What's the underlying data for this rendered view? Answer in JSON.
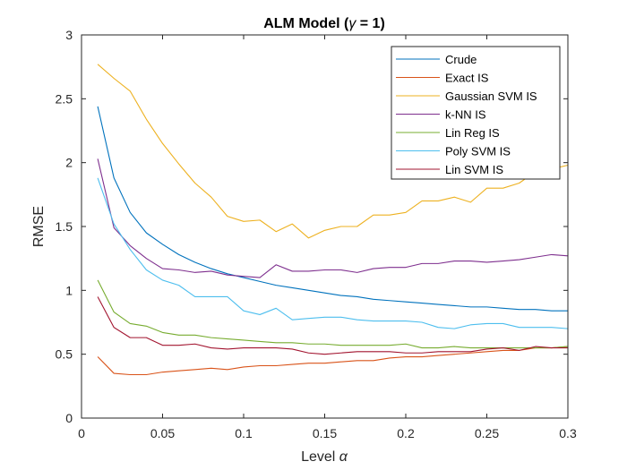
{
  "chart_data": {
    "type": "line",
    "title": "ALM Model (γ = 1)",
    "title_parts": {
      "prefix": "ALM Model (",
      "symbol": "γ",
      "suffix": " = 1)"
    },
    "xlabel": "Level α",
    "xlabel_parts": {
      "prefix": "Level ",
      "symbol": "α"
    },
    "ylabel": "RMSE",
    "xlim": [
      0,
      0.3
    ],
    "ylim": [
      0,
      3
    ],
    "xticks": [
      0,
      0.05,
      0.1,
      0.15,
      0.2,
      0.25,
      0.3
    ],
    "xtick_labels": [
      "0",
      "0.05",
      "0.1",
      "0.15",
      "0.2",
      "0.25",
      "0.3"
    ],
    "yticks": [
      0,
      0.5,
      1,
      1.5,
      2,
      2.5,
      3
    ],
    "ytick_labels": [
      "0",
      "0.5",
      "1",
      "1.5",
      "2",
      "2.5",
      "3"
    ],
    "grid": false,
    "legend_position": "top-right",
    "x": [
      0.01,
      0.02,
      0.03,
      0.04,
      0.05,
      0.06,
      0.07,
      0.08,
      0.09,
      0.1,
      0.11,
      0.12,
      0.13,
      0.14,
      0.15,
      0.16,
      0.17,
      0.18,
      0.19,
      0.2,
      0.21,
      0.22,
      0.23,
      0.24,
      0.25,
      0.26,
      0.27,
      0.28,
      0.29,
      0.3
    ],
    "series": [
      {
        "name": "Crude",
        "color": "#0072BD",
        "values": [
          2.44,
          1.88,
          1.61,
          1.45,
          1.36,
          1.28,
          1.22,
          1.17,
          1.13,
          1.1,
          1.07,
          1.04,
          1.02,
          1.0,
          0.98,
          0.96,
          0.95,
          0.93,
          0.92,
          0.91,
          0.9,
          0.89,
          0.88,
          0.87,
          0.87,
          0.86,
          0.85,
          0.85,
          0.84,
          0.84
        ]
      },
      {
        "name": "Exact IS",
        "color": "#D95319",
        "values": [
          0.48,
          0.35,
          0.34,
          0.34,
          0.36,
          0.37,
          0.38,
          0.39,
          0.38,
          0.4,
          0.41,
          0.41,
          0.42,
          0.43,
          0.43,
          0.44,
          0.45,
          0.45,
          0.47,
          0.48,
          0.48,
          0.49,
          0.5,
          0.51,
          0.52,
          0.53,
          0.53,
          0.55,
          0.55,
          0.56
        ]
      },
      {
        "name": "Gaussian SVM IS",
        "color": "#EDB120",
        "values": [
          2.77,
          2.66,
          2.56,
          2.34,
          2.15,
          1.99,
          1.84,
          1.73,
          1.58,
          1.54,
          1.55,
          1.46,
          1.52,
          1.41,
          1.47,
          1.5,
          1.5,
          1.59,
          1.59,
          1.61,
          1.7,
          1.7,
          1.73,
          1.69,
          1.8,
          1.8,
          1.84,
          1.93,
          1.95,
          1.98
        ]
      },
      {
        "name": "k-NN IS",
        "color": "#7E2F8E",
        "values": [
          2.03,
          1.49,
          1.35,
          1.25,
          1.17,
          1.16,
          1.14,
          1.15,
          1.12,
          1.11,
          1.1,
          1.2,
          1.15,
          1.15,
          1.16,
          1.16,
          1.14,
          1.17,
          1.18,
          1.18,
          1.21,
          1.21,
          1.23,
          1.23,
          1.22,
          1.23,
          1.24,
          1.26,
          1.28,
          1.27
        ]
      },
      {
        "name": "Lin Reg IS",
        "color": "#77AC30",
        "values": [
          1.08,
          0.83,
          0.74,
          0.72,
          0.67,
          0.65,
          0.65,
          0.63,
          0.62,
          0.61,
          0.6,
          0.59,
          0.59,
          0.58,
          0.58,
          0.57,
          0.57,
          0.57,
          0.57,
          0.58,
          0.55,
          0.55,
          0.56,
          0.55,
          0.55,
          0.55,
          0.55,
          0.55,
          0.55,
          0.56
        ]
      },
      {
        "name": "Poly SVM IS",
        "color": "#4DBEEE",
        "values": [
          1.88,
          1.52,
          1.32,
          1.16,
          1.08,
          1.04,
          0.95,
          0.95,
          0.95,
          0.84,
          0.81,
          0.86,
          0.77,
          0.78,
          0.79,
          0.79,
          0.77,
          0.76,
          0.76,
          0.76,
          0.75,
          0.71,
          0.7,
          0.73,
          0.74,
          0.74,
          0.71,
          0.71,
          0.71,
          0.7
        ]
      },
      {
        "name": "Lin SVM IS",
        "color": "#A2142F",
        "values": [
          0.95,
          0.71,
          0.63,
          0.63,
          0.57,
          0.57,
          0.58,
          0.55,
          0.54,
          0.55,
          0.55,
          0.55,
          0.54,
          0.51,
          0.5,
          0.51,
          0.52,
          0.52,
          0.52,
          0.51,
          0.51,
          0.52,
          0.52,
          0.52,
          0.54,
          0.55,
          0.53,
          0.56,
          0.55,
          0.55
        ]
      }
    ]
  }
}
